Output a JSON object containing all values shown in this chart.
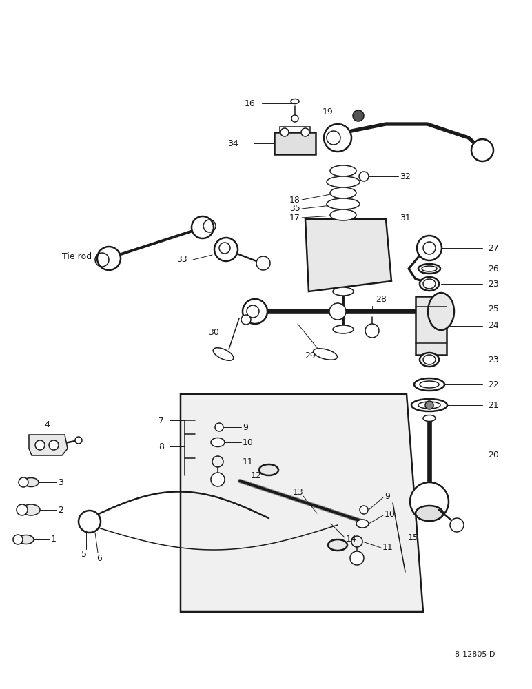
{
  "bg_color": "#ffffff",
  "line_color": "#1a1a1a",
  "watermark": "8-12805 D",
  "fig_w": 7.72,
  "fig_h": 10.0,
  "dpi": 100
}
